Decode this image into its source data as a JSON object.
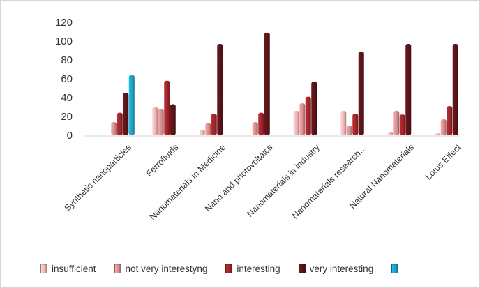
{
  "chart_data": {
    "type": "bar",
    "categories": [
      "Synthetic  nanoparticles",
      "Ferrofluids",
      "Nanomaterials in Medicine",
      "Nano and photovoltaics",
      "Nanomaterials in industry",
      "Nanomaterials research…",
      "Natural Nanomaterials",
      "Lotus Effect"
    ],
    "series": [
      {
        "name": "insufficient",
        "color": "#efb8b8",
        "values": [
          0,
          30,
          6,
          0,
          26,
          26,
          3,
          2
        ]
      },
      {
        "name": "not very interestyng",
        "color": "#d99090",
        "values": [
          14,
          28,
          13,
          14,
          34,
          10,
          26,
          17
        ]
      },
      {
        "name": "interesting",
        "color": "#a3262a",
        "values": [
          24,
          58,
          23,
          24,
          41,
          23,
          22,
          31
        ]
      },
      {
        "name": "very interesting",
        "color": "#5c1419",
        "values": [
          45,
          33,
          97,
          109,
          57,
          89,
          97,
          97
        ]
      },
      {
        "name": "",
        "color": "#1fa3c9",
        "values": [
          64,
          0,
          0,
          0,
          0,
          0,
          0,
          0
        ]
      }
    ],
    "legend": [
      {
        "name": "insufficient",
        "color": "#efb8b8"
      },
      {
        "name": "not very interestyng",
        "color": "#d99090"
      },
      {
        "name": "interesting",
        "color": "#a3262a"
      },
      {
        "name": "very interesting",
        "color": "#5c1419"
      },
      {
        "name": "",
        "color": "#1fa3c9"
      }
    ],
    "yticks": [
      0,
      20,
      40,
      60,
      80,
      100,
      120
    ],
    "ylim": [
      0,
      120
    ],
    "legend_position": "bottom",
    "grid": false
  }
}
